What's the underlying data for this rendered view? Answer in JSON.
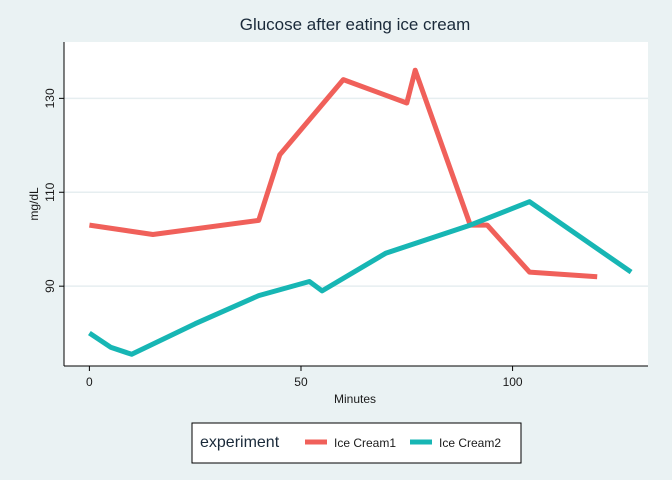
{
  "chart_data": {
    "type": "line",
    "title": "Glucose after eating ice cream",
    "xlabel": "Minutes",
    "ylabel": "mg/dL",
    "xlim": [
      -6,
      132
    ],
    "ylim": [
      73,
      142
    ],
    "xticks": [
      0,
      50,
      100
    ],
    "yticks": [
      90,
      110,
      130
    ],
    "grid": "horizontal",
    "legend": {
      "title": "experiment",
      "position": "bottom"
    },
    "series": [
      {
        "name": "Ice Cream1",
        "color": "#f0605a",
        "points": [
          [
            0,
            103
          ],
          [
            15,
            101
          ],
          [
            40,
            104
          ],
          [
            45,
            118
          ],
          [
            60,
            134
          ],
          [
            75,
            129
          ],
          [
            77,
            136
          ],
          [
            90,
            103
          ],
          [
            94,
            103
          ],
          [
            104,
            93
          ],
          [
            120,
            92
          ]
        ]
      },
      {
        "name": "Ice Cream2",
        "color": "#17b6b4",
        "points": [
          [
            0,
            80
          ],
          [
            5,
            77
          ],
          [
            10,
            75.5
          ],
          [
            25,
            82
          ],
          [
            40,
            88
          ],
          [
            52,
            91
          ],
          [
            55,
            89
          ],
          [
            70,
            97
          ],
          [
            90,
            103
          ],
          [
            104,
            108
          ],
          [
            128,
            93
          ]
        ]
      }
    ]
  }
}
